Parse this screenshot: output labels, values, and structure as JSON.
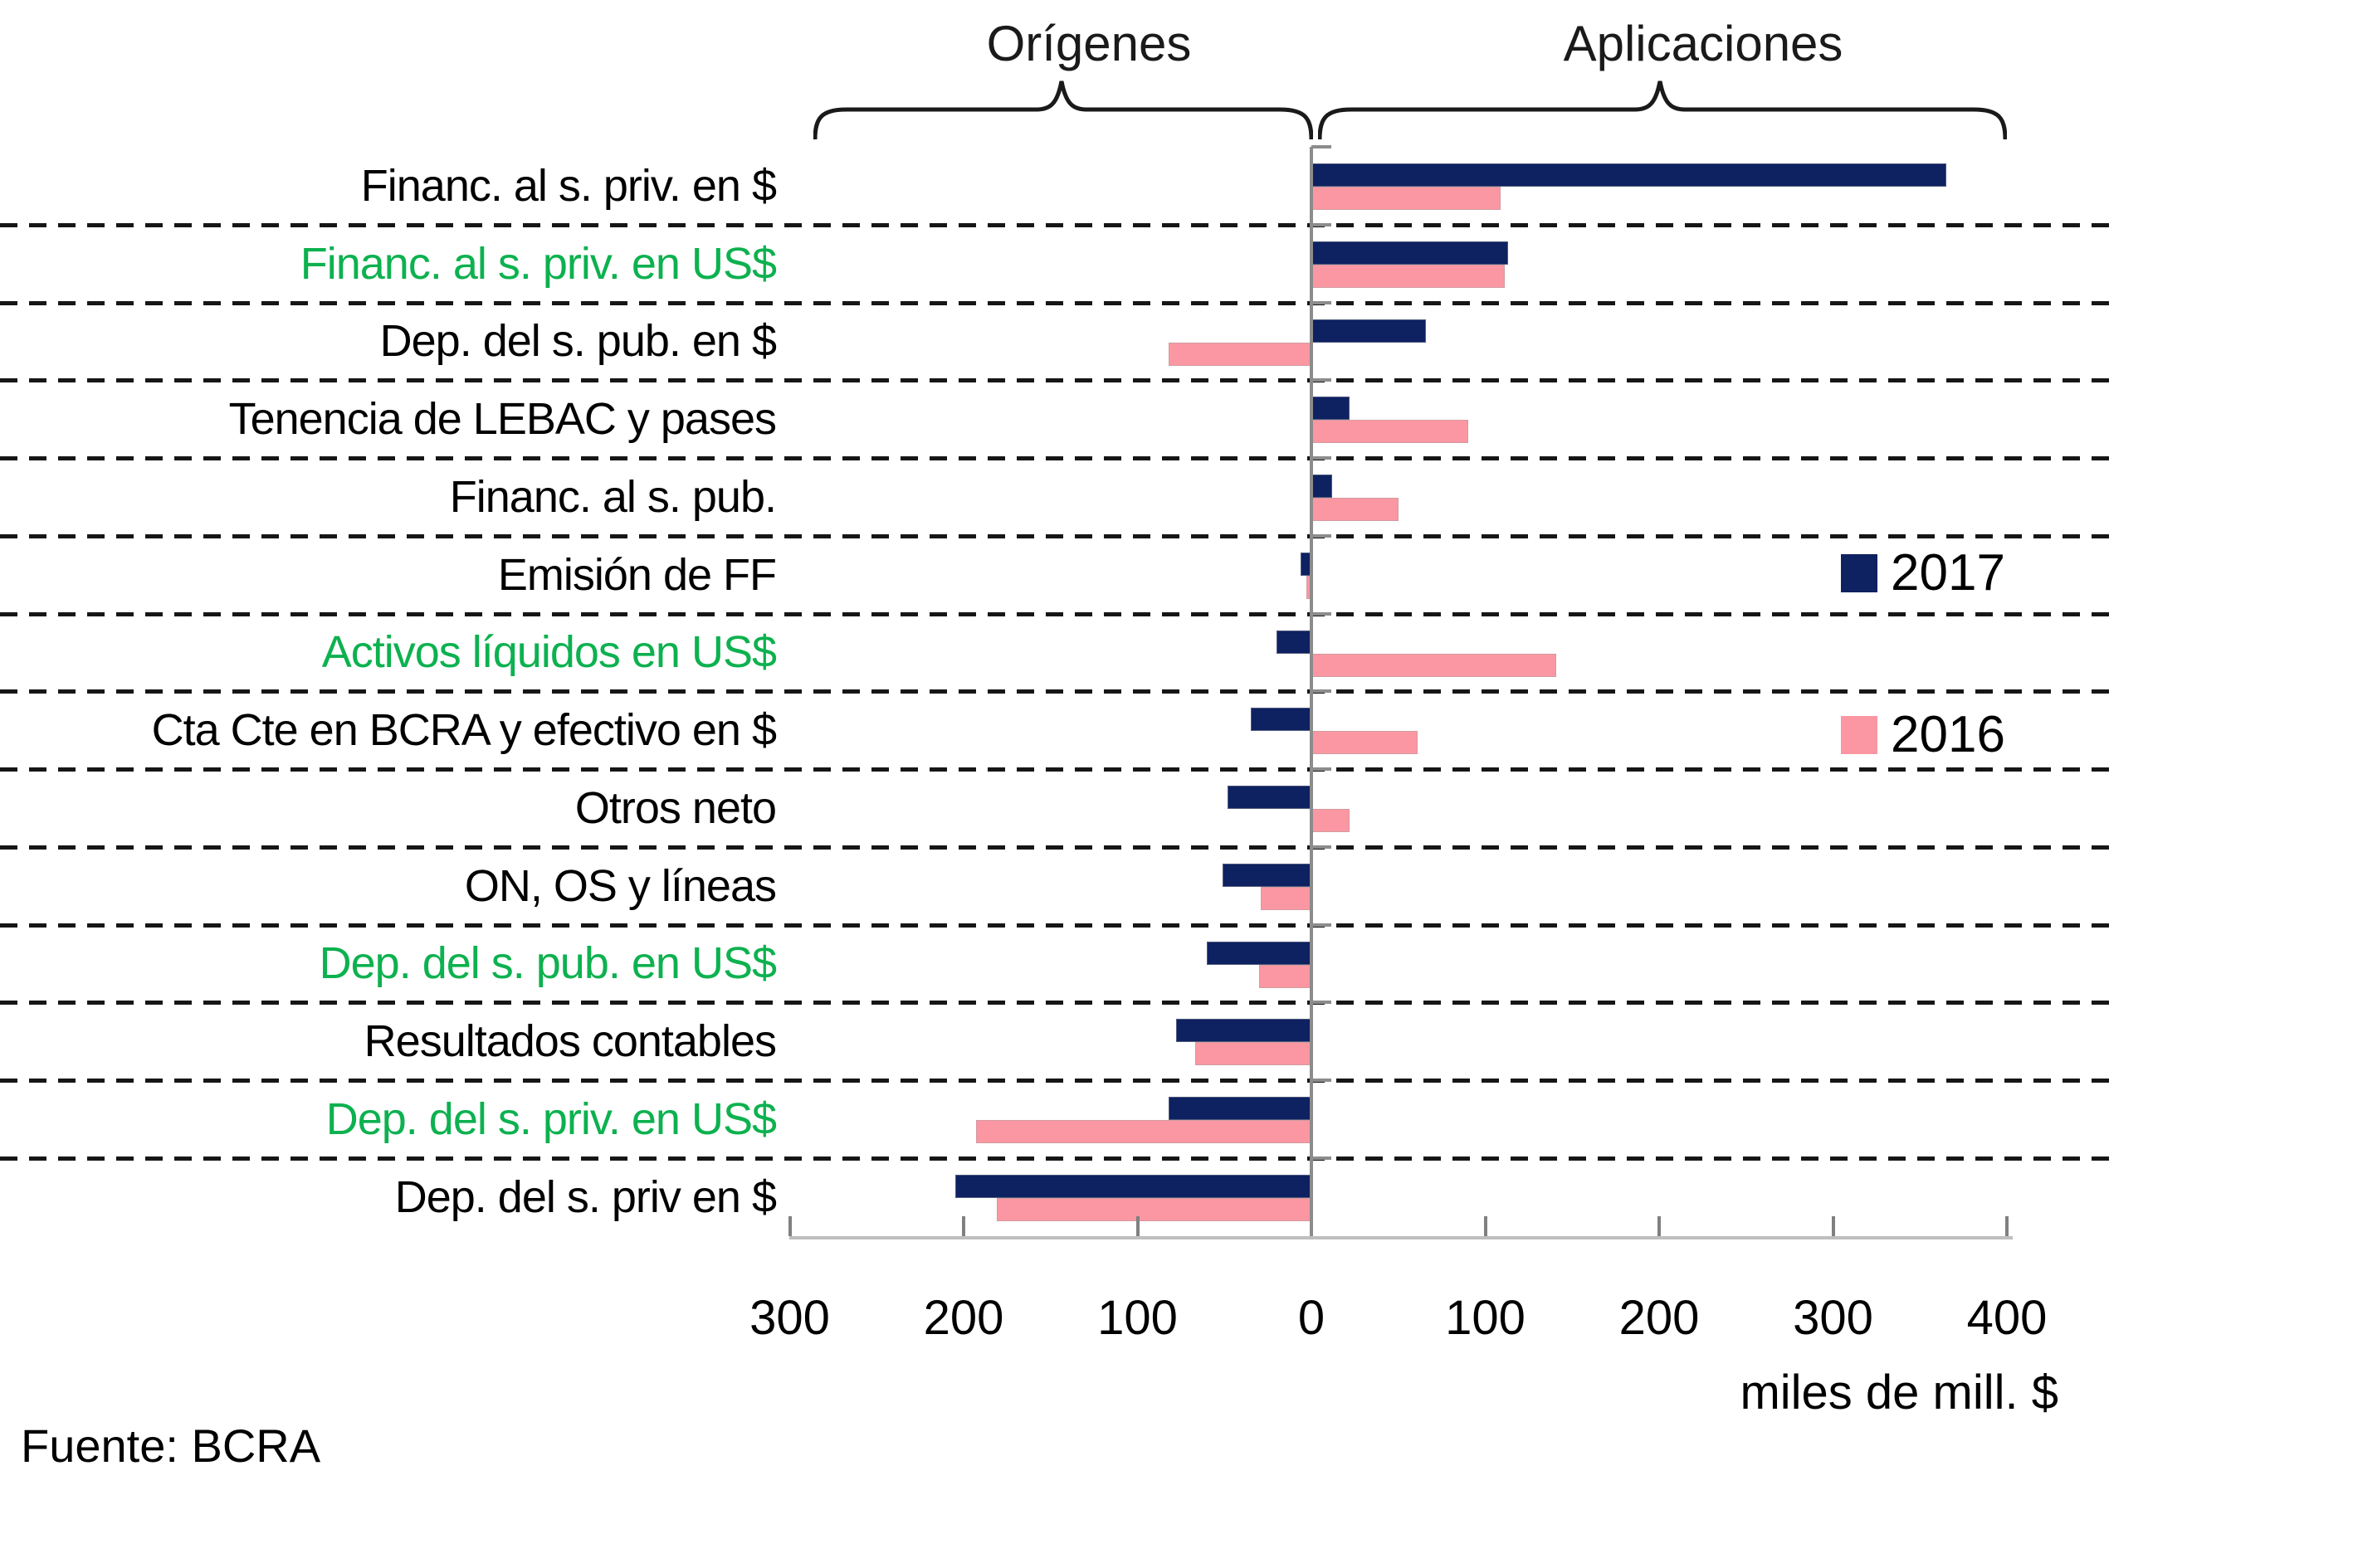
{
  "header": {
    "origins_label": "Orígenes",
    "applications_label": "Aplicaciones"
  },
  "legend": {
    "items": [
      {
        "label": "2017",
        "color": "#0E2161"
      },
      {
        "label": "2016",
        "color": "#FB97A2"
      }
    ]
  },
  "chart_data": {
    "type": "bar",
    "orientation": "horizontal",
    "title": "",
    "xlabel": "miles de mill. $",
    "xlim": [
      -300,
      400
    ],
    "grid": "dashed-horizontal",
    "legend_position": "right-middle",
    "x_ticks": [
      {
        "value": -300,
        "label": "300"
      },
      {
        "value": -200,
        "label": "200"
      },
      {
        "value": -100,
        "label": "100"
      },
      {
        "value": 0,
        "label": "0"
      },
      {
        "value": 100,
        "label": "100"
      },
      {
        "value": 200,
        "label": "200"
      },
      {
        "value": 300,
        "label": "300"
      },
      {
        "value": 400,
        "label": "400"
      }
    ],
    "categories": [
      {
        "label": "Financ. al s. priv. en $",
        "highlight": false
      },
      {
        "label": "Financ. al s. priv. en US$",
        "highlight": true
      },
      {
        "label": "Dep. del s. pub. en $",
        "highlight": false
      },
      {
        "label": "Tenencia de LEBAC y pases",
        "highlight": false
      },
      {
        "label": "Financ. al s. pub.",
        "highlight": false
      },
      {
        "label": "Emisión de FF",
        "highlight": false
      },
      {
        "label": "Activos líquidos en US$",
        "highlight": true
      },
      {
        "label": "Cta Cte en BCRA y efectivo en $",
        "highlight": false
      },
      {
        "label": "Otros neto",
        "highlight": false
      },
      {
        "label": "ON, OS y líneas",
        "highlight": false
      },
      {
        "label": "Dep. del s. pub. en US$",
        "highlight": true
      },
      {
        "label": "Resultados contables",
        "highlight": false
      },
      {
        "label": "Dep. del s. priv. en US$",
        "highlight": true
      },
      {
        "label": "Dep. del s. priv en $",
        "highlight": false
      }
    ],
    "series": [
      {
        "name": "2017",
        "color": "#0E2161",
        "values": [
          365,
          113,
          66,
          22,
          12,
          -6,
          -20,
          -35,
          -48,
          -51,
          -60,
          -78,
          -82,
          -205
        ]
      },
      {
        "name": "2016",
        "color": "#FB97A2",
        "values": [
          109,
          111,
          -82,
          90,
          50,
          -3,
          141,
          61,
          22,
          -29,
          -30,
          -67,
          -193,
          -181
        ]
      }
    ],
    "colors": {
      "highlight_category": "#0DB14F",
      "gridline": "#161616",
      "axis_line": "#BFBFBF",
      "zero_line": "#8C8C8C"
    }
  },
  "footer": {
    "source": "Fuente: BCRA"
  }
}
